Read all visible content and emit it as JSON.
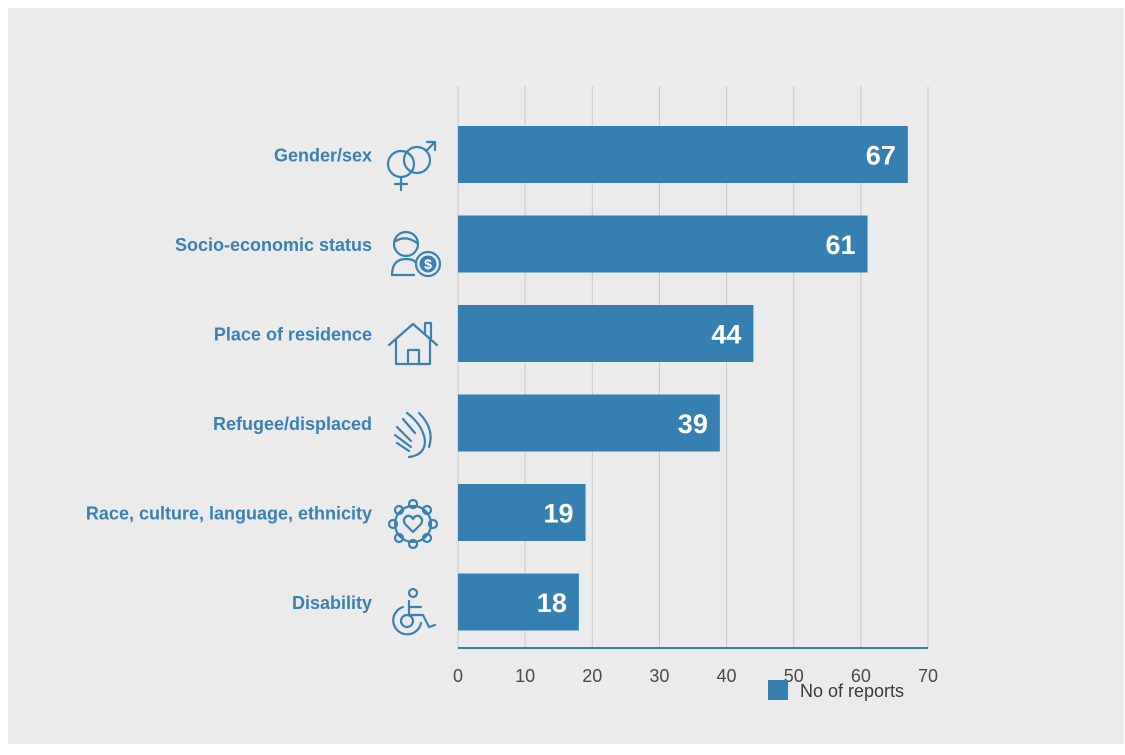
{
  "chart_data": {
    "type": "bar",
    "orientation": "horizontal",
    "categories": [
      "Gender/sex",
      "Socio-economic status",
      "Place of residence",
      "Refugee/displaced",
      "Race, culture, language, ethnicity",
      "Disability"
    ],
    "values": [
      67,
      61,
      44,
      39,
      19,
      18
    ],
    "value_labels": [
      "67",
      "61",
      "44",
      "39",
      "19",
      "18"
    ],
    "xlim": [
      0,
      70
    ],
    "xticks": [
      0,
      10,
      20,
      30,
      40,
      50,
      60,
      70
    ],
    "grid": true,
    "legend": {
      "placement": "bottom-right",
      "entries": [
        "No of reports"
      ]
    },
    "icons": [
      "gender-icon",
      "socio-economic-icon",
      "house-icon",
      "refugee-hands-icon",
      "diversity-circle-icon",
      "wheelchair-icon"
    ],
    "colors": {
      "bar": "#3680b1",
      "label": "#3a81b3",
      "grid": "#c8c8c8",
      "axis": "#3680b1",
      "background": "#ebebeb"
    }
  }
}
